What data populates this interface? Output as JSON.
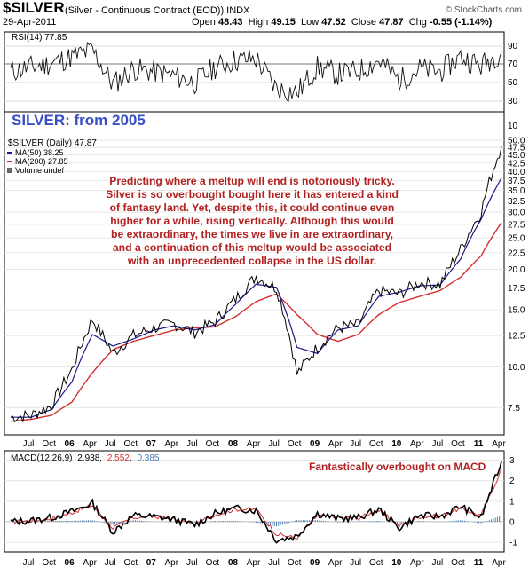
{
  "header": {
    "symbol": "$SILVER",
    "name": "(Silver - Continuous Contract (EOD)) INDX",
    "date": "29-Apr-2011",
    "open_label": "Open",
    "open": "48.43",
    "high_label": "High",
    "high": "49.15",
    "low_label": "Low",
    "low": "47.52",
    "close_label": "Close",
    "close": "47.87",
    "chg_label": "Chg",
    "chg": "-0.55 (-1.14%)",
    "source": "© StockCharts.com"
  },
  "rsi_panel": {
    "legend": "RSI(14) 77.85",
    "ticks": [
      "90",
      "70",
      "50",
      "30",
      "10"
    ]
  },
  "price_panel": {
    "title": "SILVER: from 2005",
    "legend_price": "$SILVER (Daily) 47.87",
    "legend_ma50": "MA(50) 38.25",
    "legend_ma200": "MA(200) 27.85",
    "legend_volume": "Volume undef",
    "note_lines": [
      "Predicting where a meltup will end is notoriously tricky.",
      "Silver is so overbought bought here it has entered a kind",
      "of fantasy land. Yet, despite this, it could continue even",
      "higher for a while, rising vertically. Although this would",
      "be extraordinary, the times we live in are extraordinary,",
      "and a continuation of this meltup would be associated",
      "with an unprecedented collapse in the US dollar."
    ],
    "y_ticks": [
      "50.0",
      "47.5",
      "45.0",
      "42.5",
      "40.0",
      "37.5",
      "35.0",
      "32.5",
      "30.0",
      "27.5",
      "25.0",
      "22.5",
      "20.0",
      "17.5",
      "15.0",
      "12.5",
      "10.0",
      "7.5"
    ]
  },
  "macd_panel": {
    "legend_label": "MACD(12,26,9)",
    "legend_macd": "2.938",
    "legend_signal": "2.552",
    "legend_hist": "0.385",
    "note": "Fantastically overbought on MACD",
    "ticks": [
      "3",
      "2",
      "1",
      "0",
      "-1"
    ]
  },
  "x_axis_labels": [
    "Jul",
    "Oct",
    "06",
    "Apr",
    "Jul",
    "Oct",
    "07",
    "Apr",
    "Jul",
    "Oct",
    "08",
    "Apr",
    "Jul",
    "Oct",
    "09",
    "Apr",
    "Jul",
    "Oct",
    "10",
    "Apr",
    "Jul",
    "Oct",
    "11",
    "Apr"
  ],
  "colors": {
    "note_text": "#b22222",
    "title_text": "#3a4fc4",
    "price_line": "#000000",
    "ma50": "#1a1a8c",
    "ma200": "#d32f2f",
    "macd_signal": "#d32f2f",
    "macd_hist": "#4a7fb5",
    "rsi_overbought": "#3c6e3c"
  },
  "chart_data": {
    "type": "line",
    "x": [
      "2005-04",
      "2005-07",
      "2005-10",
      "2006-01",
      "2006-04",
      "2006-07",
      "2006-10",
      "2007-01",
      "2007-04",
      "2007-07",
      "2007-10",
      "2008-01",
      "2008-04",
      "2008-07",
      "2008-10",
      "2009-01",
      "2009-04",
      "2009-07",
      "2009-10",
      "2010-01",
      "2010-04",
      "2010-07",
      "2010-10",
      "2011-01",
      "2011-04"
    ],
    "series": [
      {
        "name": "$SILVER",
        "values": [
          7.0,
          7.1,
          7.6,
          9.8,
          14.0,
          11.0,
          12.5,
          13.2,
          13.6,
          12.8,
          13.8,
          16.2,
          19.0,
          17.5,
          9.5,
          11.5,
          13.2,
          13.5,
          17.2,
          16.8,
          18.2,
          18.0,
          23.0,
          30.0,
          47.87
        ]
      },
      {
        "name": "MA(50)",
        "values": [
          7.0,
          7.0,
          7.4,
          9.0,
          12.6,
          11.6,
          12.2,
          13.0,
          13.4,
          13.0,
          13.5,
          15.6,
          18.0,
          17.6,
          11.5,
          11.0,
          13.0,
          13.4,
          16.5,
          17.0,
          17.8,
          17.9,
          21.5,
          28.5,
          38.25
        ]
      },
      {
        "name": "MA(200)",
        "values": [
          6.8,
          6.9,
          7.1,
          7.8,
          9.6,
          11.3,
          12.0,
          12.5,
          13.0,
          13.2,
          13.3,
          14.3,
          15.9,
          16.8,
          14.5,
          12.6,
          12.0,
          12.6,
          14.5,
          15.8,
          16.5,
          17.2,
          18.9,
          22.0,
          27.85
        ]
      }
    ],
    "macd": {
      "macd": [
        0.0,
        0.05,
        0.2,
        0.5,
        0.9,
        -0.5,
        0.3,
        0.25,
        0.1,
        -0.15,
        0.4,
        0.65,
        0.55,
        -0.9,
        -0.7,
        0.4,
        0.15,
        0.2,
        0.6,
        -0.3,
        0.3,
        0.25,
        0.75,
        0.2,
        2.938
      ],
      "signal": [
        0.0,
        0.05,
        0.15,
        0.45,
        0.8,
        -0.3,
        0.2,
        0.25,
        0.12,
        -0.1,
        0.35,
        0.6,
        0.6,
        -0.6,
        -0.8,
        0.3,
        0.2,
        0.18,
        0.55,
        -0.2,
        0.25,
        0.28,
        0.65,
        0.3,
        2.552
      ]
    },
    "rsi": [
      55,
      60,
      65,
      72,
      80,
      40,
      58,
      55,
      50,
      42,
      60,
      68,
      70,
      35,
      30,
      60,
      52,
      55,
      68,
      45,
      58,
      55,
      72,
      62,
      77.85
    ],
    "ylim_price": [
      6.5,
      50
    ],
    "ylim_rsi": [
      10,
      95
    ],
    "ylim_macd": [
      -1.3,
      3.2
    ],
    "yscale": "log"
  }
}
